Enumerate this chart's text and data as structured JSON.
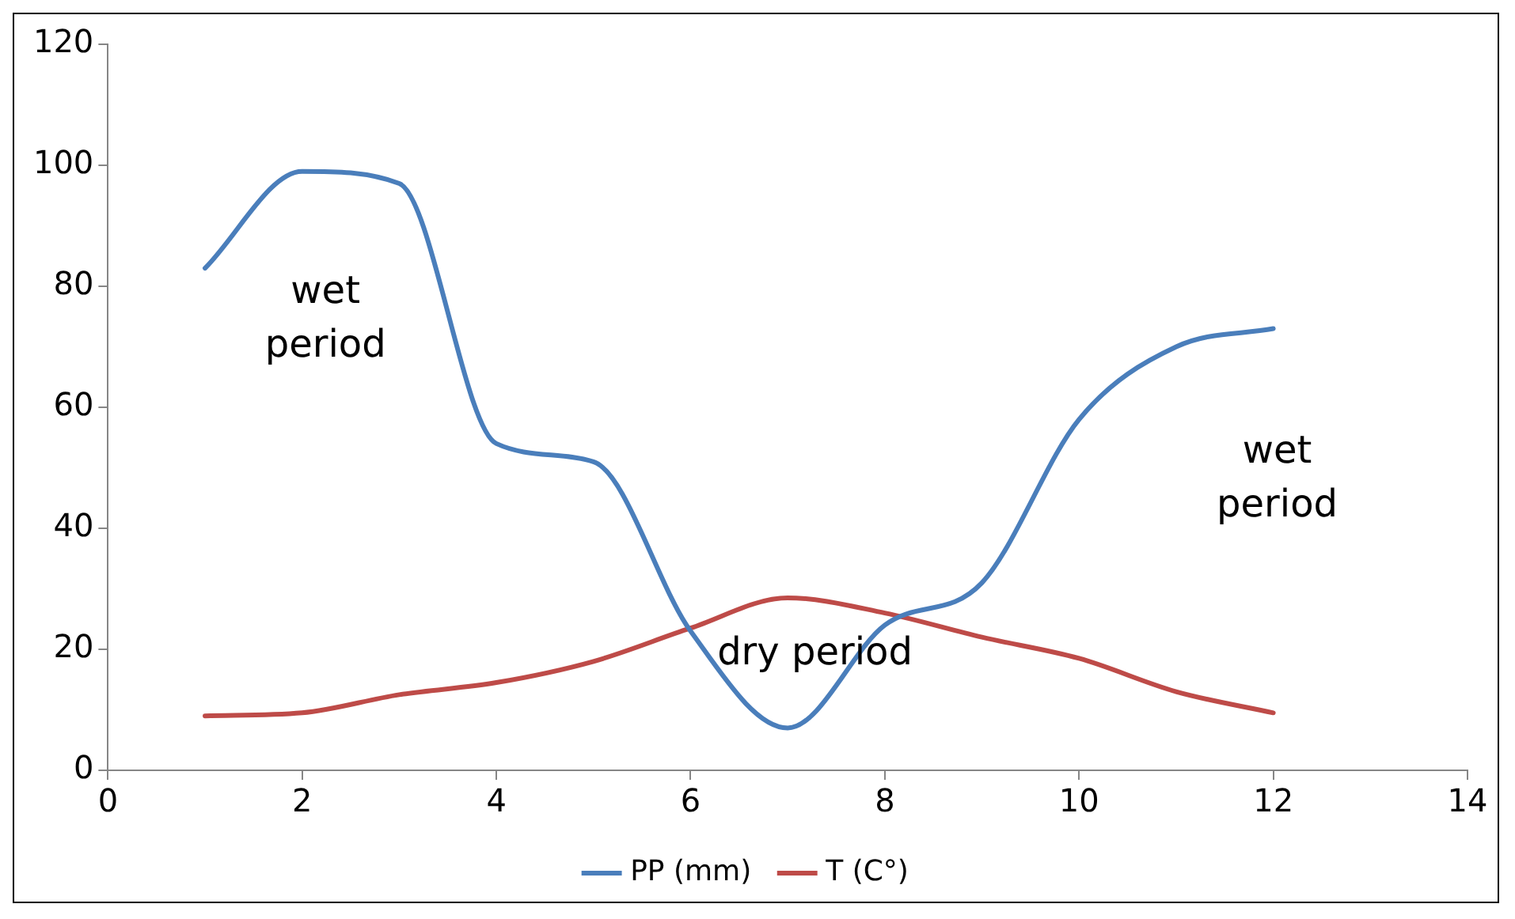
{
  "chart_data": {
    "type": "line",
    "x": [
      1,
      2,
      3,
      4,
      5,
      6,
      7,
      8,
      9,
      10,
      11,
      12
    ],
    "series": [
      {
        "name": "PP (mm)",
        "color": "#4a7ebb",
        "values": [
          83,
          99,
          97,
          54,
          51,
          23,
          7,
          24,
          31,
          58,
          70,
          73
        ]
      },
      {
        "name": "T (C°)",
        "color": "#be4b48",
        "values": [
          9,
          9.5,
          12.5,
          14.5,
          18,
          23.5,
          28.5,
          26,
          22,
          18.5,
          13,
          9.5
        ]
      }
    ],
    "xlim": [
      0,
      14
    ],
    "xticks": [
      0,
      2,
      4,
      6,
      8,
      10,
      12,
      14
    ],
    "ylim": [
      0,
      120
    ],
    "yticks": [
      0,
      20,
      40,
      60,
      80,
      100,
      120
    ],
    "grid": false,
    "legend": "bottom",
    "marker": "none",
    "line_style": "solid",
    "annotations": [
      "wet\nperiod",
      "dry period",
      "wet\nperiod"
    ]
  }
}
